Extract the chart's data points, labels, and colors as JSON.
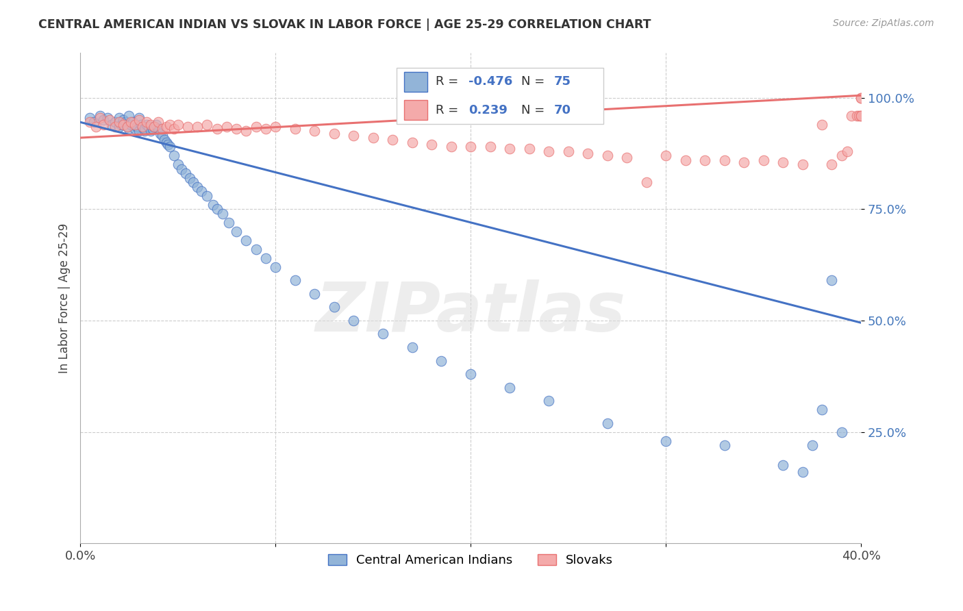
{
  "title": "CENTRAL AMERICAN INDIAN VS SLOVAK IN LABOR FORCE | AGE 25-29 CORRELATION CHART",
  "source": "Source: ZipAtlas.com",
  "ylabel": "In Labor Force | Age 25-29",
  "ytick_labels": [
    "100.0%",
    "75.0%",
    "50.0%",
    "25.0%"
  ],
  "ytick_values": [
    1.0,
    0.75,
    0.5,
    0.25
  ],
  "xlim": [
    0.0,
    0.4
  ],
  "ylim": [
    0.0,
    1.1
  ],
  "legend_blue_r": "-0.476",
  "legend_blue_n": "75",
  "legend_pink_r": "0.239",
  "legend_pink_n": "70",
  "legend_labels": [
    "Central American Indians",
    "Slovaks"
  ],
  "blue_color": "#92B4D8",
  "pink_color": "#F4AAAA",
  "blue_edge_color": "#4472C4",
  "pink_edge_color": "#E87070",
  "blue_line_color": "#4472C4",
  "pink_line_color": "#E87070",
  "watermark_text": "ZIPatlas",
  "blue_scatter_x": [
    0.005,
    0.007,
    0.01,
    0.012,
    0.014,
    0.016,
    0.018,
    0.02,
    0.02,
    0.021,
    0.022,
    0.023,
    0.024,
    0.025,
    0.025,
    0.026,
    0.027,
    0.028,
    0.029,
    0.03,
    0.03,
    0.031,
    0.032,
    0.033,
    0.033,
    0.034,
    0.035,
    0.036,
    0.037,
    0.038,
    0.039,
    0.04,
    0.041,
    0.042,
    0.043,
    0.044,
    0.045,
    0.046,
    0.048,
    0.05,
    0.052,
    0.054,
    0.056,
    0.058,
    0.06,
    0.062,
    0.065,
    0.068,
    0.07,
    0.073,
    0.076,
    0.08,
    0.085,
    0.09,
    0.095,
    0.1,
    0.11,
    0.12,
    0.13,
    0.14,
    0.155,
    0.17,
    0.185,
    0.2,
    0.22,
    0.24,
    0.27,
    0.3,
    0.33,
    0.36,
    0.37,
    0.375,
    0.38,
    0.385,
    0.39
  ],
  "blue_scatter_y": [
    0.955,
    0.945,
    0.96,
    0.95,
    0.955,
    0.94,
    0.945,
    0.955,
    0.935,
    0.94,
    0.95,
    0.945,
    0.935,
    0.96,
    0.93,
    0.94,
    0.945,
    0.93,
    0.935,
    0.955,
    0.925,
    0.94,
    0.935,
    0.925,
    0.93,
    0.94,
    0.935,
    0.925,
    0.93,
    0.935,
    0.94,
    0.93,
    0.92,
    0.915,
    0.905,
    0.9,
    0.895,
    0.89,
    0.87,
    0.85,
    0.84,
    0.83,
    0.82,
    0.81,
    0.8,
    0.79,
    0.78,
    0.76,
    0.75,
    0.74,
    0.72,
    0.7,
    0.68,
    0.66,
    0.64,
    0.62,
    0.59,
    0.56,
    0.53,
    0.5,
    0.47,
    0.44,
    0.41,
    0.38,
    0.35,
    0.32,
    0.27,
    0.23,
    0.22,
    0.175,
    0.16,
    0.22,
    0.3,
    0.59,
    0.25
  ],
  "pink_scatter_x": [
    0.005,
    0.008,
    0.01,
    0.012,
    0.015,
    0.018,
    0.02,
    0.022,
    0.024,
    0.026,
    0.028,
    0.03,
    0.032,
    0.034,
    0.036,
    0.038,
    0.04,
    0.042,
    0.044,
    0.046,
    0.048,
    0.05,
    0.055,
    0.06,
    0.065,
    0.07,
    0.075,
    0.08,
    0.085,
    0.09,
    0.095,
    0.1,
    0.11,
    0.12,
    0.13,
    0.14,
    0.15,
    0.16,
    0.17,
    0.18,
    0.19,
    0.2,
    0.21,
    0.22,
    0.23,
    0.24,
    0.25,
    0.26,
    0.27,
    0.28,
    0.29,
    0.3,
    0.31,
    0.32,
    0.33,
    0.34,
    0.35,
    0.36,
    0.37,
    0.38,
    0.385,
    0.39,
    0.393,
    0.395,
    0.398,
    0.399,
    0.4,
    0.4,
    0.4,
    0.4
  ],
  "pink_scatter_y": [
    0.945,
    0.935,
    0.955,
    0.94,
    0.95,
    0.935,
    0.945,
    0.94,
    0.935,
    0.945,
    0.94,
    0.95,
    0.935,
    0.945,
    0.94,
    0.935,
    0.945,
    0.93,
    0.935,
    0.94,
    0.93,
    0.94,
    0.935,
    0.935,
    0.94,
    0.93,
    0.935,
    0.93,
    0.925,
    0.935,
    0.93,
    0.935,
    0.93,
    0.925,
    0.92,
    0.915,
    0.91,
    0.905,
    0.9,
    0.895,
    0.89,
    0.89,
    0.89,
    0.885,
    0.885,
    0.88,
    0.88,
    0.875,
    0.87,
    0.865,
    0.81,
    0.87,
    0.86,
    0.86,
    0.86,
    0.855,
    0.86,
    0.855,
    0.85,
    0.94,
    0.85,
    0.87,
    0.88,
    0.96,
    0.96,
    0.96,
    0.96,
    0.96,
    1.0,
    1.0
  ],
  "blue_line_x": [
    0.0,
    0.4
  ],
  "blue_line_y": [
    0.945,
    0.495
  ],
  "pink_line_x": [
    0.0,
    0.4
  ],
  "pink_line_y": [
    0.91,
    1.005
  ],
  "background_color": "#FFFFFF",
  "grid_color": "#CCCCCC",
  "xtick_positions": [
    0.0,
    0.1,
    0.2,
    0.3,
    0.4
  ],
  "xtick_labels": [
    "0.0%",
    "",
    "",
    "",
    "40.0%"
  ]
}
